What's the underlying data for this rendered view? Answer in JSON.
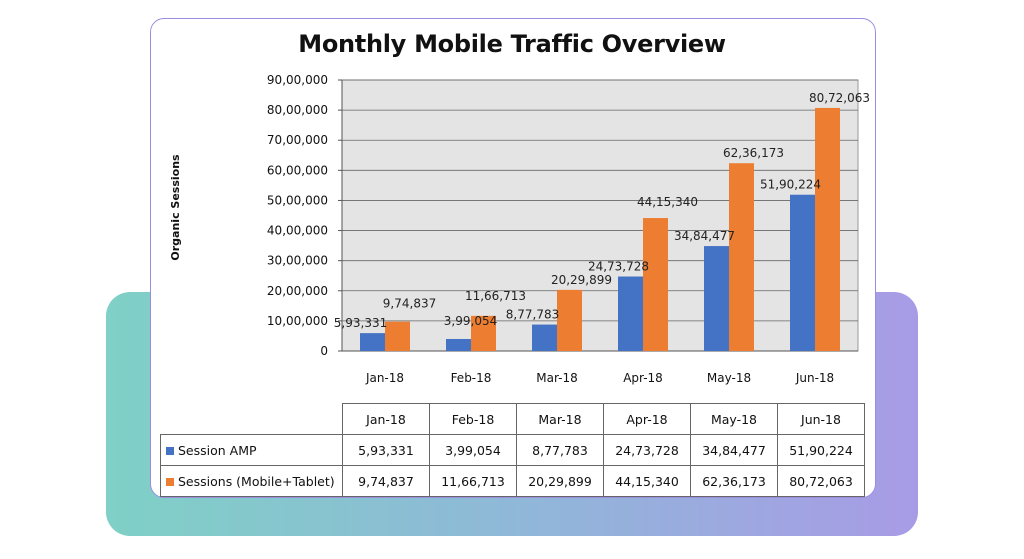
{
  "chart_data": {
    "type": "bar",
    "title": "Monthly Mobile Traffic Overview",
    "ylabel": "Organic Sessions",
    "xlabel": "",
    "categories": [
      "Jan-18",
      "Feb-18",
      "Mar-18",
      "Apr-18",
      "May-18",
      "Jun-18"
    ],
    "ylim": [
      0,
      9000000
    ],
    "yticks": [
      0,
      1000000,
      2000000,
      3000000,
      4000000,
      5000000,
      6000000,
      7000000,
      8000000,
      9000000
    ],
    "ytick_labels": [
      "0",
      "10,00,000",
      "20,00,000",
      "30,00,000",
      "40,00,000",
      "50,00,000",
      "60,00,000",
      "70,00,000",
      "80,00,000",
      "90,00,000"
    ],
    "grid": true,
    "legend": "data-table",
    "series": [
      {
        "name": "Session AMP",
        "color": "#4472c4",
        "values": [
          593331,
          399054,
          877783,
          2473728,
          3484477,
          5190224
        ],
        "labels": [
          "5,93,331",
          "3,99,054",
          "8,77,783",
          "24,73,728",
          "34,84,477",
          "51,90,224"
        ]
      },
      {
        "name": "Sessions (Mobile+Tablet)",
        "color": "#ed7d31",
        "values": [
          974837,
          1166713,
          2029899,
          4415340,
          6236173,
          8072063
        ],
        "labels": [
          "9,74,837",
          "11,66,713",
          "20,29,899",
          "44,15,340",
          "62,36,173",
          "80,72,063"
        ]
      }
    ]
  }
}
